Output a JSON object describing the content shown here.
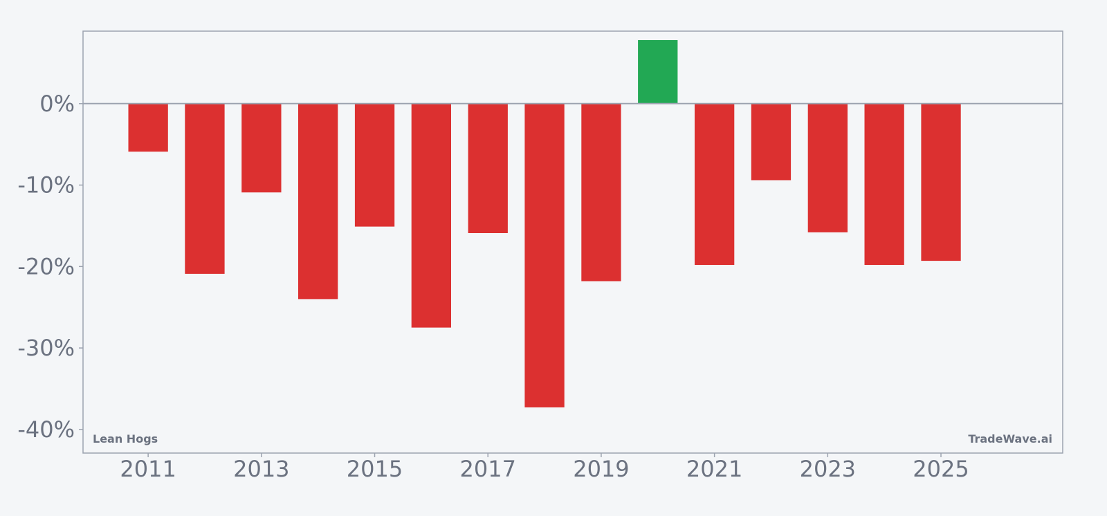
{
  "chart_data": {
    "type": "bar",
    "categories": [
      "2011",
      "2012",
      "2013",
      "2014",
      "2015",
      "2016",
      "2017",
      "2018",
      "2019",
      "2020",
      "2021",
      "2022",
      "2023",
      "2024",
      "2025"
    ],
    "values": [
      -5.9,
      -20.9,
      -10.9,
      -24.0,
      -15.1,
      -27.5,
      -15.9,
      -37.3,
      -21.8,
      7.8,
      -19.8,
      -9.4,
      -15.8,
      -19.8,
      -19.3
    ],
    "x_tick_labels": [
      "2011",
      "2013",
      "2015",
      "2017",
      "2019",
      "2021",
      "2023",
      "2025"
    ],
    "y_tick_labels": [
      "0%",
      "-10%",
      "-20%",
      "-30%",
      "-40%"
    ],
    "y_ticks": [
      0,
      -10,
      -20,
      -30,
      -40
    ],
    "ylim": [
      -42.9,
      8.9
    ],
    "x_range": [
      2009.85,
      2027.15
    ],
    "grid": false,
    "colors": {
      "positive": "#22a854",
      "negative": "#dc3030",
      "axis": "#9ca3af",
      "text": "#6b7280",
      "background": "#f4f6f8"
    },
    "annotations": {
      "left": "Lean Hogs",
      "right": "TradeWave.ai"
    }
  }
}
